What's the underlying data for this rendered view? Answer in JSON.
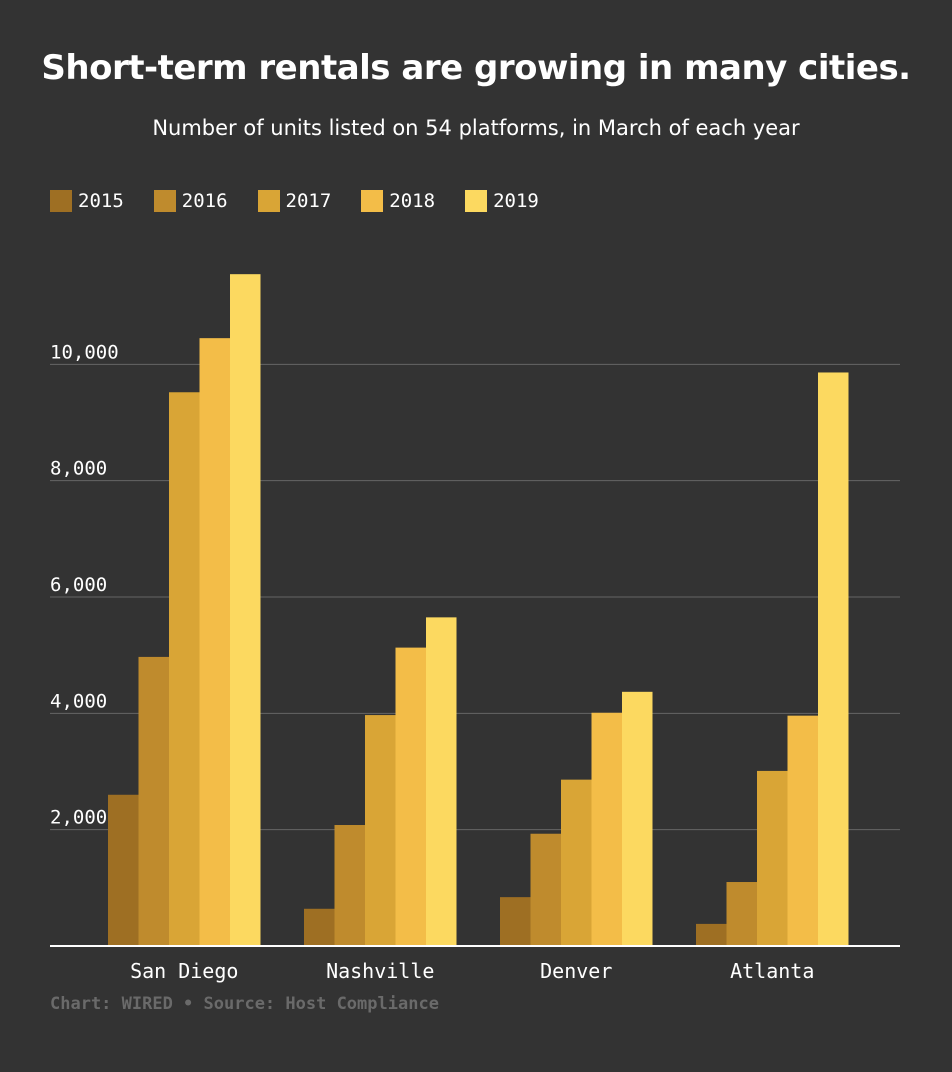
{
  "title": "Short-term rentals are growing in many cities.",
  "subtitle": "Number of units listed on 54 platforms, in March of each year",
  "source": "Chart: WIRED • Source: Host Compliance",
  "colors": {
    "background": "#333333",
    "gridline": "#666666",
    "baseline": "#ffffff",
    "text": "#ffffff"
  },
  "legend_position": "top-left",
  "chart_data": {
    "type": "bar",
    "title": "Short-term rentals are growing in many cities.",
    "subtitle": "Number of units listed on 54 platforms, in March of each year",
    "categories": [
      "San Diego",
      "Nashville",
      "Denver",
      "Atlanta"
    ],
    "series": [
      {
        "name": "2015",
        "color": "#9e6f23",
        "values": [
          2600,
          640,
          840,
          380
        ]
      },
      {
        "name": "2016",
        "color": "#bf8b2d",
        "values": [
          4970,
          2080,
          1930,
          1100
        ]
      },
      {
        "name": "2017",
        "color": "#d9a536",
        "values": [
          9520,
          3970,
          2860,
          3010
        ]
      },
      {
        "name": "2018",
        "color": "#f3bd48",
        "values": [
          10450,
          5130,
          4010,
          3960
        ]
      },
      {
        "name": "2019",
        "color": "#fcd960",
        "values": [
          11550,
          5650,
          4370,
          9860
        ]
      }
    ],
    "ylim": [
      0,
      12000
    ],
    "yticks": [
      2000,
      4000,
      6000,
      8000,
      10000
    ],
    "ytick_labels": [
      "2,000",
      "4,000",
      "6,000",
      "8,000",
      "10,000"
    ],
    "grid": true
  }
}
